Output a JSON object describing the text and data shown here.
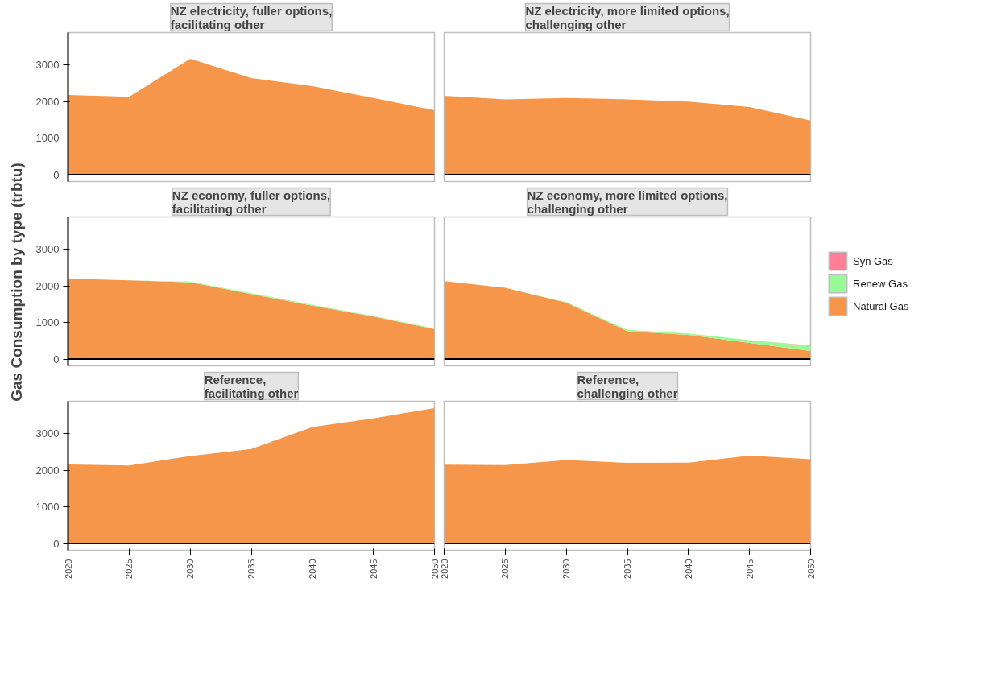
{
  "chart_data": [
    {
      "type": "area",
      "stacked": true,
      "title": "NZ electricity, fuller options,\nfacilitating other",
      "x": [
        2020,
        2025,
        2030,
        2035,
        2040,
        2045,
        2050
      ],
      "xlim": [
        2020,
        2050
      ],
      "xticks": [
        2020,
        2025,
        2030,
        2035,
        2040,
        2045,
        2050
      ],
      "ylim": [
        -185,
        3885
      ],
      "yticks": [
        0,
        1000,
        2000,
        3000
      ],
      "tick_labels": "y",
      "grid": false,
      "legend": false,
      "ref_lines": [
        {
          "axis": "y",
          "value": 0,
          "color": "#000000"
        }
      ],
      "series": [
        {
          "color": "#f5964a",
          "values": [
            2180,
            2130,
            3170,
            2640,
            2420,
            2100,
            1760
          ]
        }
      ]
    },
    {
      "type": "area",
      "stacked": true,
      "title": "NZ electricity, more limited options,\nchallenging other",
      "x": [
        2020,
        2025,
        2030,
        2035,
        2040,
        2045,
        2050
      ],
      "xlim": [
        2020,
        2050
      ],
      "xticks": [
        2020,
        2025,
        2030,
        2035,
        2040,
        2045,
        2050
      ],
      "ylim": [
        -185,
        3885
      ],
      "yticks": [
        0,
        1000,
        2000,
        3000
      ],
      "tick_labels": false,
      "grid": false,
      "legend": false,
      "ref_lines": [
        {
          "axis": "y",
          "value": 0,
          "color": "#000000"
        }
      ],
      "series": [
        {
          "color": "#f5964a",
          "values": [
            2160,
            2060,
            2100,
            2060,
            2000,
            1850,
            1480
          ]
        }
      ]
    },
    {
      "type": "area",
      "stacked": true,
      "title": "NZ economy, fuller options,\nfacilitating other",
      "ylabel": "Gas Consumption by type (trbtu)",
      "x": [
        2020,
        2025,
        2030,
        2035,
        2040,
        2045,
        2050
      ],
      "xlim": [
        2020,
        2050
      ],
      "xticks": [
        2020,
        2025,
        2030,
        2035,
        2040,
        2045,
        2050
      ],
      "ylim": [
        -185,
        3885
      ],
      "yticks": [
        0,
        1000,
        2000,
        3000
      ],
      "tick_labels": "y",
      "grid": false,
      "legend": false,
      "ref_lines": [
        {
          "axis": "y",
          "value": 0,
          "color": "#000000"
        }
      ],
      "series": [
        {
          "color": "#f5964a",
          "values": [
            2200,
            2150,
            2100,
            1780,
            1460,
            1160,
            820
          ]
        },
        {
          "color": "#98fb98",
          "values": [
            0,
            0,
            20,
            20,
            20,
            20,
            20
          ]
        }
      ]
    },
    {
      "type": "area",
      "stacked": true,
      "title": "NZ economy, more limited options,\nchallenging other",
      "x": [
        2020,
        2025,
        2030,
        2035,
        2040,
        2045,
        2050
      ],
      "xlim": [
        2020,
        2050
      ],
      "xticks": [
        2020,
        2025,
        2030,
        2035,
        2040,
        2045,
        2050
      ],
      "ylim": [
        -185,
        3885
      ],
      "yticks": [
        0,
        1000,
        2000,
        3000
      ],
      "tick_labels": false,
      "grid": false,
      "legend": "right",
      "ref_lines": [
        {
          "axis": "y",
          "value": 0,
          "color": "#000000"
        }
      ],
      "series": [
        {
          "name": "Natural Gas",
          "color": "#f5964a",
          "values": [
            2130,
            1950,
            1540,
            760,
            660,
            440,
            220
          ]
        },
        {
          "name": "Renew Gas",
          "color": "#98fb98",
          "values": [
            0,
            0,
            20,
            40,
            40,
            80,
            140
          ]
        },
        {
          "name": "Syn Gas",
          "color": "#ff7f97",
          "values": [
            0,
            0,
            0,
            0,
            0,
            0,
            10
          ]
        }
      ]
    },
    {
      "type": "area",
      "stacked": true,
      "title": "Reference,\nfacilitating other",
      "x": [
        2020,
        2025,
        2030,
        2035,
        2040,
        2045,
        2050
      ],
      "xlim": [
        2020,
        2050
      ],
      "xticks": [
        2020,
        2025,
        2030,
        2035,
        2040,
        2045,
        2050
      ],
      "ylim": [
        -185,
        3885
      ],
      "yticks": [
        0,
        1000,
        2000,
        3000
      ],
      "grid": false,
      "legend": false,
      "ref_lines": [
        {
          "axis": "y",
          "value": 0,
          "color": "#000000"
        }
      ],
      "series": [
        {
          "color": "#f5964a",
          "values": [
            2160,
            2130,
            2390,
            2580,
            3180,
            3420,
            3700
          ]
        }
      ]
    },
    {
      "type": "area",
      "stacked": true,
      "title": "Reference,\nchallenging other",
      "x": [
        2020,
        2025,
        2030,
        2035,
        2040,
        2045,
        2050
      ],
      "xlim": [
        2020,
        2050
      ],
      "xticks": [
        2020,
        2025,
        2030,
        2035,
        2040,
        2045,
        2050
      ],
      "ylim": [
        -185,
        3885
      ],
      "yticks": [
        0,
        1000,
        2000,
        3000
      ],
      "tick_labels": "x",
      "grid": false,
      "legend": false,
      "ref_lines": [
        {
          "axis": "y",
          "value": 0,
          "color": "#000000"
        }
      ],
      "series": [
        {
          "color": "#f5964a",
          "values": [
            2150,
            2140,
            2280,
            2200,
            2210,
            2400,
            2300
          ]
        }
      ]
    }
  ]
}
